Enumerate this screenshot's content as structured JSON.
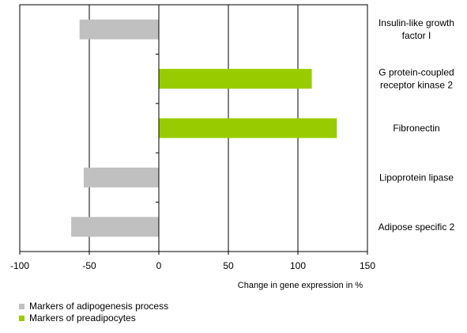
{
  "colors": {
    "adipogenesis": "#c0c0c0",
    "preadipocytes": "#99cc00",
    "axis": "#000000",
    "grid": "#000000"
  },
  "chart_data": {
    "type": "bar",
    "orientation": "horizontal",
    "xlabel": "Change in gene expression in %",
    "xlim": [
      -100,
      150
    ],
    "xticks": [
      -100,
      -50,
      0,
      50,
      100,
      150
    ],
    "grid": "vertical",
    "legend_position": "bottom-left",
    "categories": [
      "Insulin-like growth factor I",
      "G protein-coupled receptor kinase 2",
      "Fibronectin",
      "Lipoprotein lipase",
      "Adipose specific 2"
    ],
    "category_label_lines": [
      [
        "Insulin-like growth",
        "factor I"
      ],
      [
        "G protein-coupled",
        "receptor kinase 2"
      ],
      [
        "Fibronectin"
      ],
      [
        "Lipoprotein lipase"
      ],
      [
        "Adipose specific 2"
      ]
    ],
    "values": [
      -57,
      110,
      128,
      -54,
      -63
    ],
    "groups": [
      "adipogenesis",
      "preadipocytes",
      "preadipocytes",
      "adipogenesis",
      "adipogenesis"
    ],
    "legend": [
      {
        "key": "adipogenesis",
        "label": "Markers of adipogenesis process"
      },
      {
        "key": "preadipocytes",
        "label": "Markers of preadipocytes"
      }
    ]
  }
}
